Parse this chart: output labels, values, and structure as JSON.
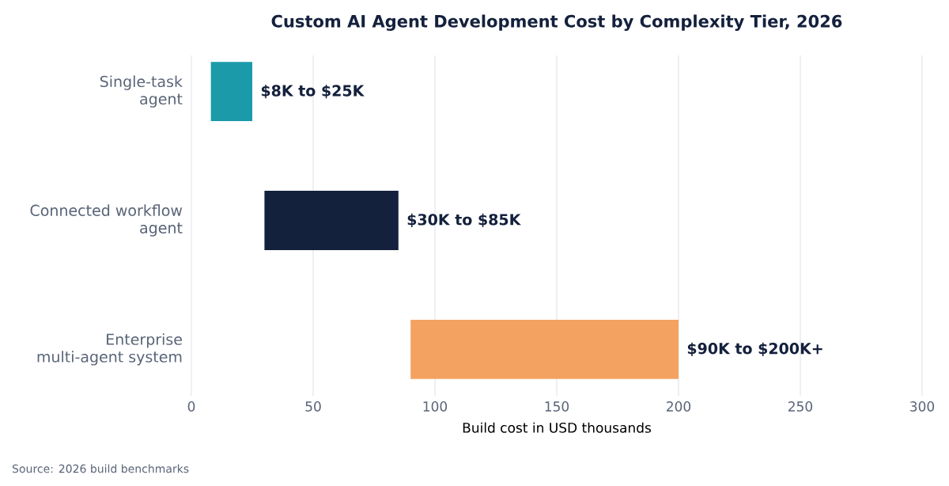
{
  "chart_data": {
    "type": "bar",
    "orientation": "horizontal",
    "title": "Custom AI Agent Development Cost by Complexity Tier, 2026",
    "xlabel": "Build cost in USD thousands",
    "categories": [
      "Single-task agent",
      "Connected workflow agent",
      "Enterprise multi-agent system"
    ],
    "base": [
      8,
      30,
      90
    ],
    "values": [
      17,
      55,
      110
    ],
    "colors": [
      "#1b9aaa",
      "#14213d",
      "#f4a261"
    ],
    "xlim": [
      0,
      300
    ],
    "xticks": [
      0,
      50,
      100,
      150,
      200,
      250,
      300
    ],
    "grid": "x",
    "annotations": [
      {
        "text": "$8K to $25K",
        "x": 25,
        "y": "Single-task agent"
      },
      {
        "text": "$30K to $85K",
        "x": 85,
        "y": "Connected workflow agent"
      },
      {
        "text": "$90K to $200K+",
        "x": 200,
        "y": "Enterprise multi-agent system"
      },
      "Source: 2026 build benchmarks"
    ]
  }
}
